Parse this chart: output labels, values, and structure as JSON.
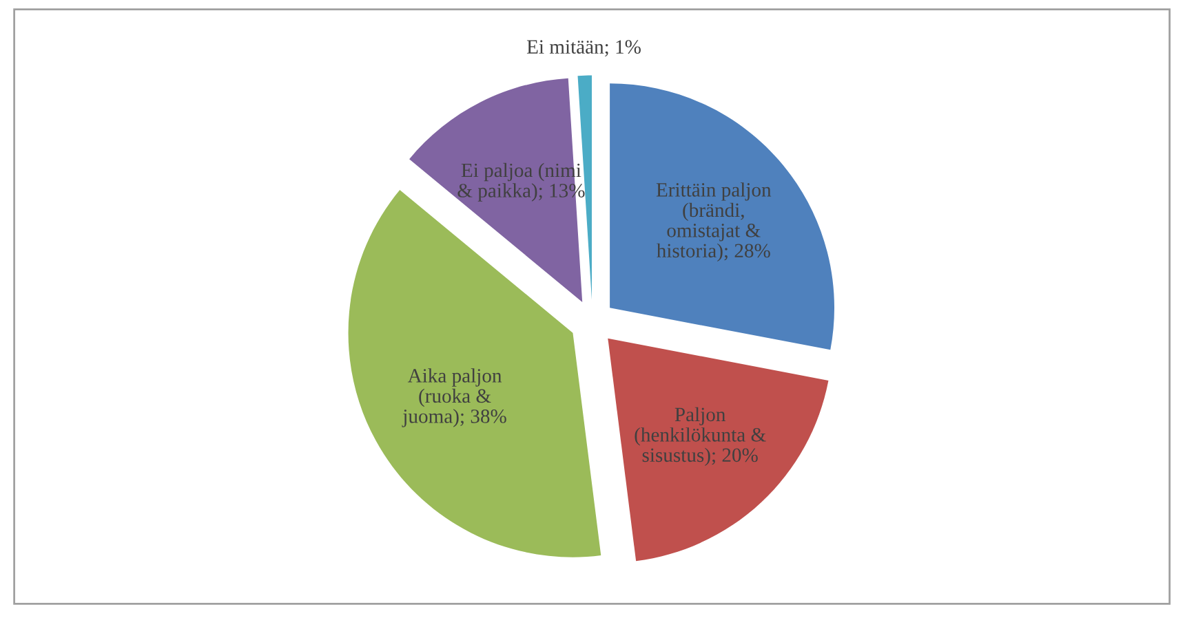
{
  "chart_data": {
    "type": "pie",
    "categories": [
      "Erittäin paljon (brändi, omistajat & historia); 28%",
      "Paljon (henkilökunta & sisustus); 20%",
      "Aika paljon (ruoka & juoma); 38%",
      "Ei paljoa (nimi & paikka); 13%",
      "Ei mitään; 1%"
    ],
    "values": [
      28,
      20,
      38,
      13,
      1
    ],
    "colors": [
      "#4f81bd",
      "#c0504d",
      "#9bbb59",
      "#8064a2",
      "#4bacc6"
    ],
    "legend": false
  }
}
